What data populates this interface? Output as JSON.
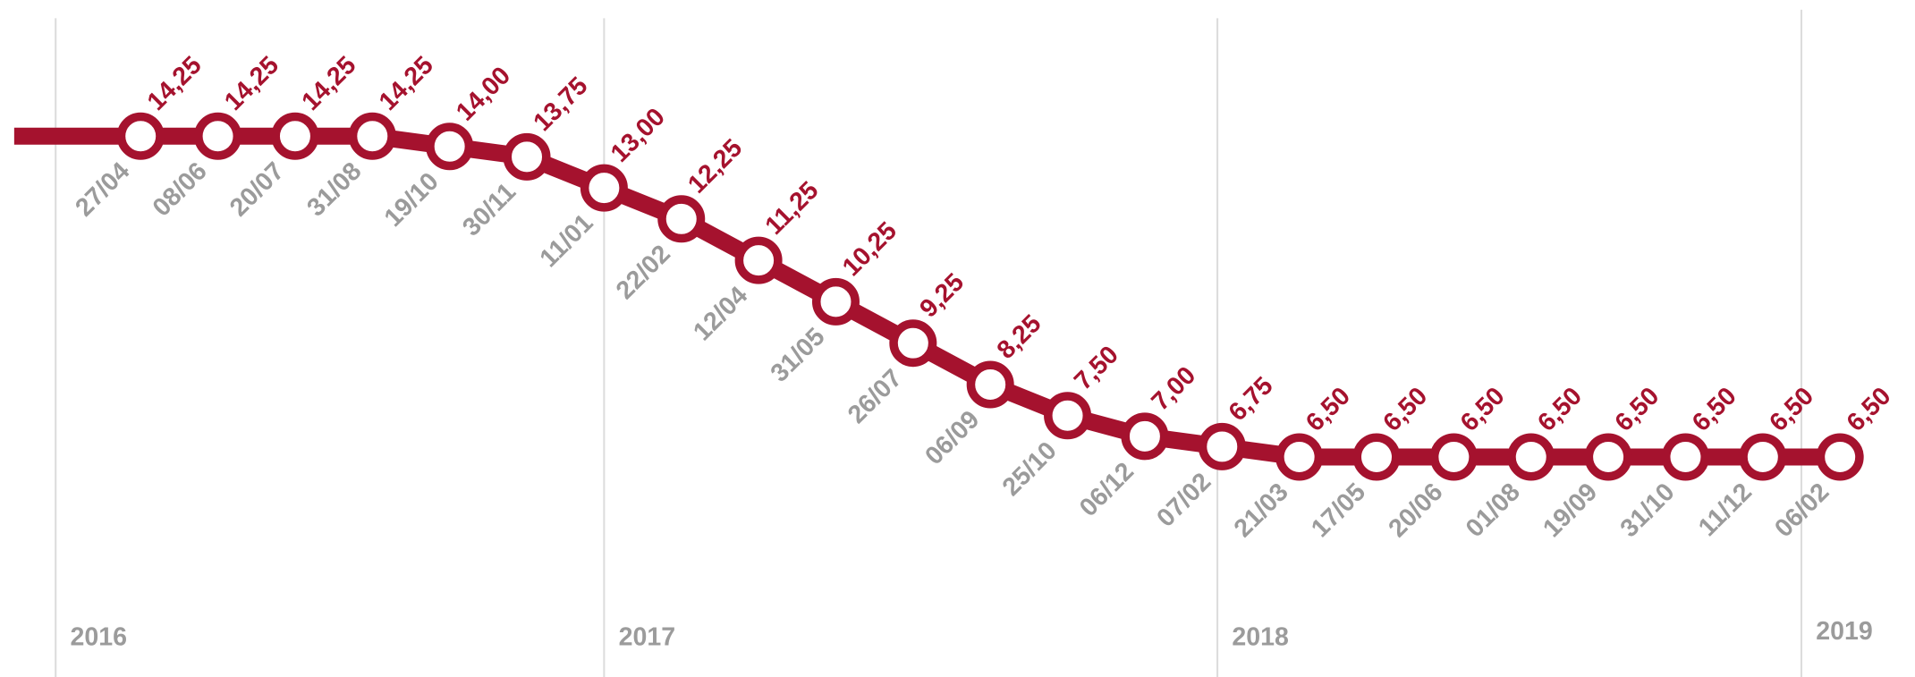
{
  "chart_data": {
    "type": "line",
    "categories": [
      "27/04",
      "08/06",
      "20/07",
      "31/08",
      "19/10",
      "30/11",
      "11/01",
      "22/02",
      "12/04",
      "31/05",
      "26/07",
      "06/09",
      "25/10",
      "06/12",
      "07/02",
      "21/03",
      "17/05",
      "20/06",
      "01/08",
      "19/09",
      "31/10",
      "11/12",
      "06/02"
    ],
    "values": [
      14.25,
      14.25,
      14.25,
      14.25,
      14.0,
      13.75,
      13.0,
      12.25,
      11.25,
      10.25,
      9.25,
      8.25,
      7.5,
      7.0,
      6.75,
      6.5,
      6.5,
      6.5,
      6.5,
      6.5,
      6.5,
      6.5,
      6.5
    ],
    "value_labels": [
      "14,25",
      "14,25",
      "14,25",
      "14,25",
      "14,00",
      "13,75",
      "13,00",
      "12,25",
      "11,25",
      "10,25",
      "9,25",
      "8,25",
      "7,50",
      "7,00",
      "6,75",
      "6,50",
      "6,50",
      "6,50",
      "6,50",
      "6,50",
      "6,50",
      "6,50",
      "6,50"
    ],
    "years": [
      "2016",
      "2017",
      "2018",
      "2019"
    ],
    "color": "#a5122e"
  }
}
